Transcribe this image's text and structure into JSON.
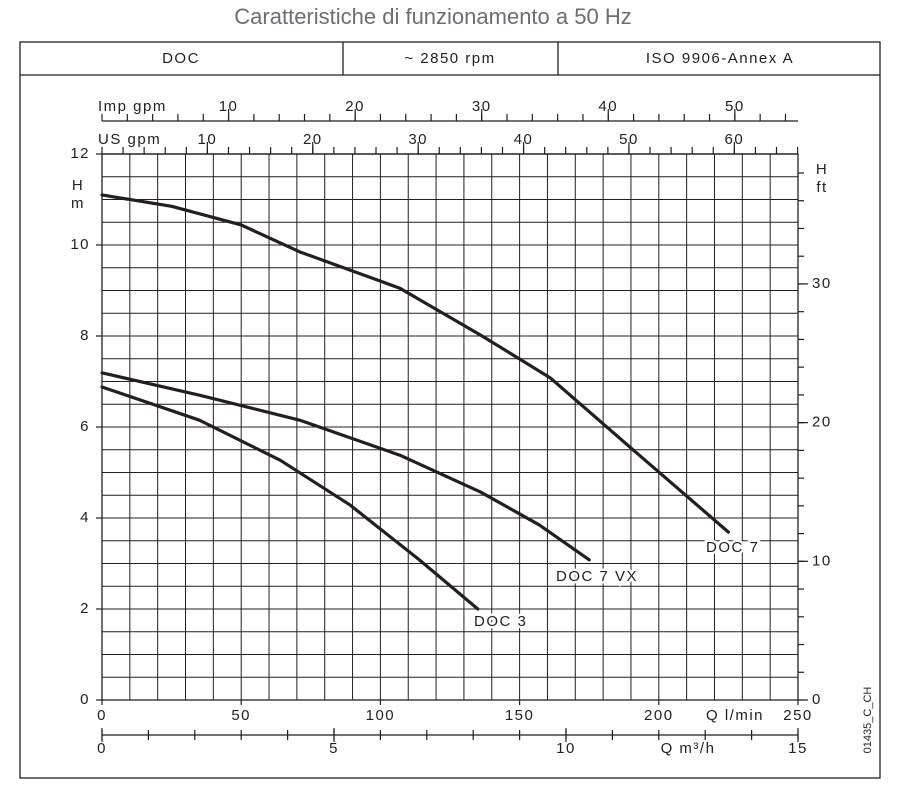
{
  "title": "Caratteristiche di funzionamento a 50 Hz",
  "header": {
    "cells": [
      "DOC",
      "~ 2850 rpm",
      "ISO 9906-Annex A"
    ]
  },
  "code": "01435_C_CH",
  "chart_data": {
    "type": "line",
    "x_label": "Q l/min",
    "y_label": "H",
    "y_unit": "m",
    "y2_label": "H",
    "y2_unit": "ft",
    "xlim": [
      0,
      250
    ],
    "xticks": [
      0,
      50,
      100,
      150,
      200,
      250
    ],
    "x_grid_step": 10,
    "ylim": [
      0,
      12
    ],
    "yticks": [
      0,
      2,
      4,
      6,
      8,
      10,
      12
    ],
    "y_grid_step": 0.5,
    "y2lim": [
      0,
      39.37
    ],
    "y2ticks": [
      0,
      10,
      20,
      30
    ],
    "y2_minor_step": 2,
    "grid": true,
    "extra_x_axes": [
      {
        "label": "Imp gpm",
        "position": "top",
        "lim": [
          0,
          54.99
        ],
        "ticks": [
          10,
          20,
          30,
          40,
          50
        ],
        "minor_step": 2
      },
      {
        "label": "US gpm",
        "position": "top",
        "lim": [
          0,
          66.04
        ],
        "ticks": [
          10,
          20,
          30,
          40,
          50,
          60
        ],
        "minor_step": 2
      },
      {
        "label": "Q m³/h",
        "position": "bottom",
        "lim": [
          0,
          15
        ],
        "ticks": [
          0,
          5,
          10,
          15
        ],
        "minor_step": 1
      }
    ],
    "series": [
      {
        "name": "DOC 7",
        "color": "#231f20",
        "x": [
          0,
          25,
          50,
          71,
          107,
          136,
          161,
          193,
          225
        ],
        "values": [
          11.1,
          10.85,
          10.44,
          9.85,
          9.05,
          8.02,
          7.08,
          5.38,
          3.69
        ]
      },
      {
        "name": "DOC 7 VX",
        "color": "#231f20",
        "x": [
          0,
          35,
          71,
          107,
          136,
          157,
          175
        ],
        "values": [
          7.19,
          6.7,
          6.15,
          5.38,
          4.57,
          3.85,
          3.08
        ]
      },
      {
        "name": "DOC 3",
        "color": "#231f20",
        "x": [
          0,
          35,
          64,
          89,
          114,
          135
        ],
        "values": [
          6.88,
          6.15,
          5.27,
          4.29,
          3.08,
          2.0
        ]
      }
    ]
  }
}
